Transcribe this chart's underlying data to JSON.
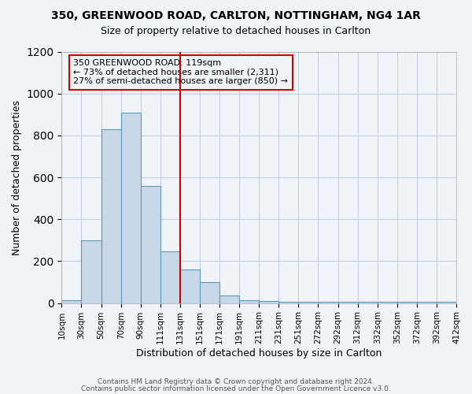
{
  "title1": "350, GREENWOOD ROAD, CARLTON, NOTTINGHAM, NG4 1AR",
  "title2": "Size of property relative to detached houses in Carlton",
  "xlabel": "Distribution of detached houses by size in Carlton",
  "ylabel": "Number of detached properties",
  "bar_values": [
    15,
    300,
    830,
    910,
    560,
    245,
    160,
    100,
    35,
    15,
    10,
    5,
    5,
    5,
    5,
    5,
    5,
    5,
    5,
    5
  ],
  "bin_labels": [
    "10sqm",
    "30sqm",
    "50sqm",
    "70sqm",
    "90sqm",
    "111sqm",
    "131sqm",
    "151sqm",
    "171sqm",
    "191sqm",
    "211sqm",
    "231sqm",
    "251sqm",
    "272sqm",
    "292sqm",
    "312sqm",
    "332sqm",
    "352sqm",
    "372sqm",
    "392sqm",
    "412sqm"
  ],
  "bar_color": "#c8d8e8",
  "bar_edge_color": "#5a9abf",
  "vline_color": "#cc0000",
  "vline_index": 5,
  "annotation_line1": "350 GREENWOOD ROAD: 119sqm",
  "annotation_line2": "← 73% of detached houses are smaller (2,311)",
  "annotation_line3": "27% of semi-detached houses are larger (850) →",
  "annotation_box_color": "#cc0000",
  "ylim": [
    0,
    1200
  ],
  "yticks": [
    0,
    200,
    400,
    600,
    800,
    1000,
    1200
  ],
  "footer1": "Contains HM Land Registry data © Crown copyright and database right 2024.",
  "footer2": "Contains public sector information licensed under the Open Government Licence v3.0.",
  "background_color": "#f0f4f8",
  "grid_color": "#c0d0e0"
}
